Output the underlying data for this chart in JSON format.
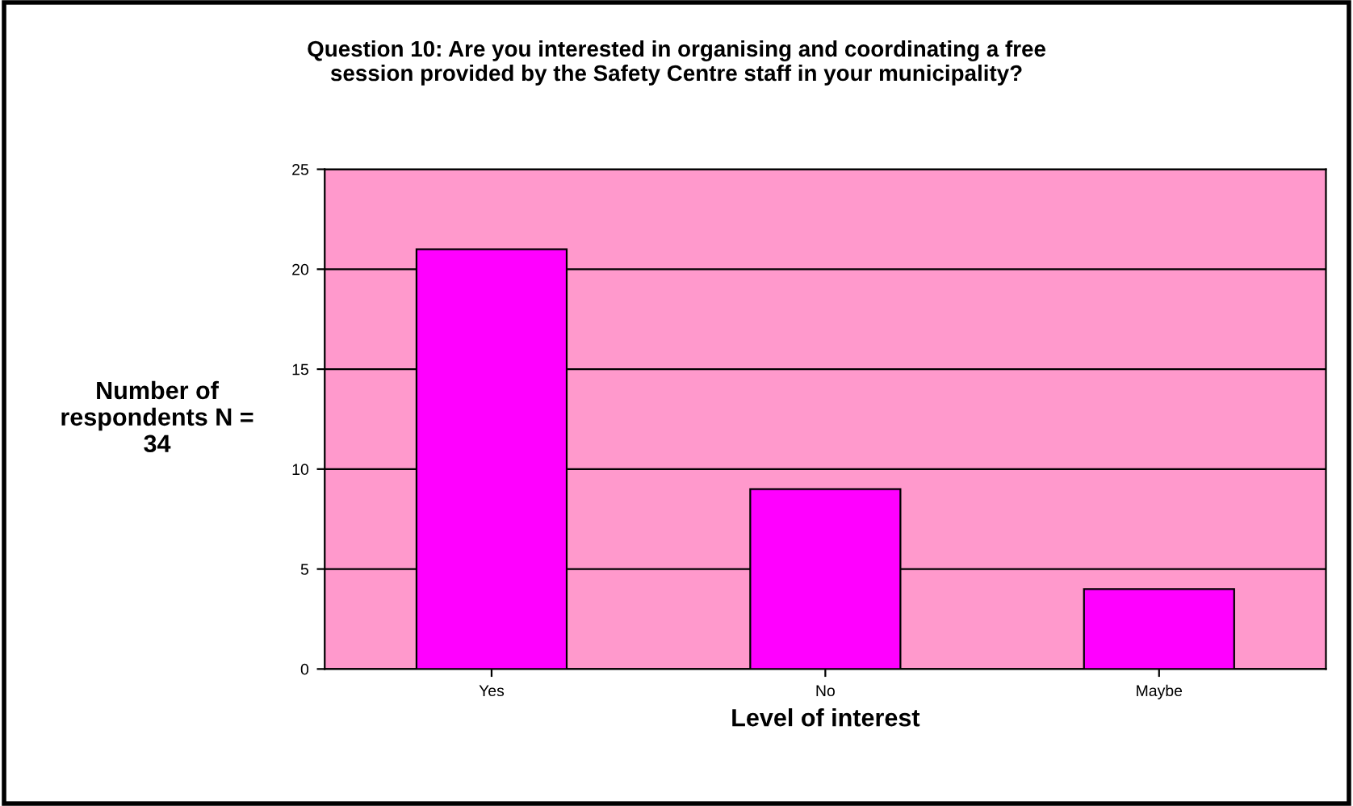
{
  "chart_data": {
    "type": "bar",
    "title": "Question 10: Are you interested in organising and coordinating a free\nsession provided by the Safety Centre staff in your municipality?",
    "xlabel": "Level of interest",
    "ylabel": "Number of\nrespondents N =\n34",
    "categories": [
      "Yes",
      "No",
      "Maybe"
    ],
    "values": [
      21,
      9,
      4
    ],
    "color": "#ff00ff",
    "ylim": [
      0,
      25
    ],
    "yticks": [
      0,
      5,
      10,
      15,
      20,
      25
    ],
    "grid": "y",
    "legend": false
  }
}
